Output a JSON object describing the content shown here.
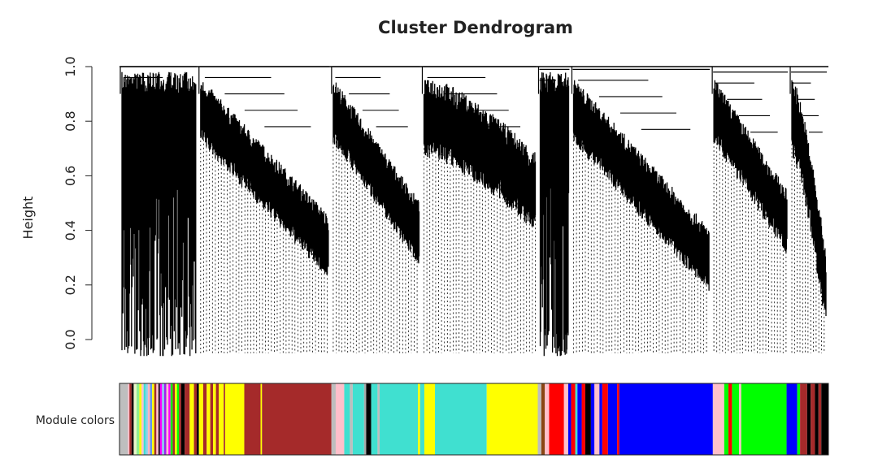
{
  "chart_data": {
    "type": "dendrogram",
    "title": "Cluster Dendrogram",
    "xlabel": "",
    "ylabel": "Height",
    "ylim": [
      0.0,
      1.0
    ],
    "yticks": [
      "0.0",
      "0.2",
      "0.4",
      "0.6",
      "0.8",
      "1.0"
    ],
    "color_bar_label": "Module colors",
    "branches": [
      {
        "start": 0.0,
        "end": 0.111,
        "merge_height": 1.0,
        "min_leaf": -0.06,
        "profile": "spikes"
      },
      {
        "start": 0.111,
        "end": 0.298,
        "merge_height": 1.0,
        "min_leaf": 0.28,
        "profile": "slope"
      },
      {
        "start": 0.298,
        "end": 0.426,
        "merge_height": 1.0,
        "min_leaf": 0.33,
        "profile": "slope"
      },
      {
        "start": 0.426,
        "end": 0.59,
        "merge_height": 1.0,
        "min_leaf": 0.47,
        "profile": "mixed"
      },
      {
        "start": 0.59,
        "end": 0.637,
        "merge_height": 0.99,
        "min_leaf": -0.06,
        "profile": "spikes"
      },
      {
        "start": 0.637,
        "end": 0.835,
        "merge_height": 0.99,
        "min_leaf": 0.23,
        "profile": "slope"
      },
      {
        "start": 0.835,
        "end": 0.945,
        "merge_height": 0.98,
        "min_leaf": 0.37,
        "profile": "slope"
      },
      {
        "start": 0.945,
        "end": 1.0,
        "merge_height": 0.98,
        "min_leaf": 0.1,
        "profile": "mixed"
      }
    ],
    "module_colors": [
      {
        "start": 0.0,
        "end": 0.012,
        "color": "#bebebe"
      },
      {
        "start": 0.012,
        "end": 0.014,
        "color": "#ffc0cb"
      },
      {
        "start": 0.014,
        "end": 0.017,
        "color": "#a52a2a"
      },
      {
        "start": 0.017,
        "end": 0.02,
        "color": "#000000"
      },
      {
        "start": 0.02,
        "end": 0.024,
        "color": "#e9f5c8"
      },
      {
        "start": 0.024,
        "end": 0.028,
        "color": "#90ee90"
      },
      {
        "start": 0.028,
        "end": 0.031,
        "color": "#ffff00"
      },
      {
        "start": 0.031,
        "end": 0.034,
        "color": "#ffc0cb"
      },
      {
        "start": 0.034,
        "end": 0.037,
        "color": "#40e0d0"
      },
      {
        "start": 0.037,
        "end": 0.04,
        "color": "#87ceeb"
      },
      {
        "start": 0.04,
        "end": 0.043,
        "color": "#ffb6c1"
      },
      {
        "start": 0.043,
        "end": 0.046,
        "color": "#6495ed"
      },
      {
        "start": 0.046,
        "end": 0.049,
        "color": "#ffff00"
      },
      {
        "start": 0.049,
        "end": 0.052,
        "color": "#a52a2a"
      },
      {
        "start": 0.052,
        "end": 0.055,
        "color": "#ffc0cb"
      },
      {
        "start": 0.055,
        "end": 0.057,
        "color": "#000000"
      },
      {
        "start": 0.057,
        "end": 0.06,
        "color": "#ff00ff"
      },
      {
        "start": 0.06,
        "end": 0.063,
        "color": "#87ceeb"
      },
      {
        "start": 0.063,
        "end": 0.066,
        "color": "#a020f0"
      },
      {
        "start": 0.066,
        "end": 0.069,
        "color": "#ffc0cb"
      },
      {
        "start": 0.069,
        "end": 0.072,
        "color": "#ff00ff"
      },
      {
        "start": 0.072,
        "end": 0.075,
        "color": "#00ff00"
      },
      {
        "start": 0.075,
        "end": 0.078,
        "color": "#a52a2a"
      },
      {
        "start": 0.078,
        "end": 0.081,
        "color": "#ffff00"
      },
      {
        "start": 0.081,
        "end": 0.084,
        "color": "#00ff00"
      },
      {
        "start": 0.084,
        "end": 0.087,
        "color": "#a52a2a"
      },
      {
        "start": 0.087,
        "end": 0.092,
        "color": "#000000"
      },
      {
        "start": 0.092,
        "end": 0.099,
        "color": "#a52a2a"
      },
      {
        "start": 0.099,
        "end": 0.105,
        "color": "#ffff00"
      },
      {
        "start": 0.105,
        "end": 0.109,
        "color": "#a52a2a"
      },
      {
        "start": 0.109,
        "end": 0.112,
        "color": "#000000"
      },
      {
        "start": 0.112,
        "end": 0.118,
        "color": "#ffff00"
      },
      {
        "start": 0.118,
        "end": 0.123,
        "color": "#a52a2a"
      },
      {
        "start": 0.123,
        "end": 0.128,
        "color": "#ffff00"
      },
      {
        "start": 0.128,
        "end": 0.132,
        "color": "#a52a2a"
      },
      {
        "start": 0.132,
        "end": 0.136,
        "color": "#ffff00"
      },
      {
        "start": 0.136,
        "end": 0.14,
        "color": "#a52a2a"
      },
      {
        "start": 0.14,
        "end": 0.147,
        "color": "#ffff00"
      },
      {
        "start": 0.147,
        "end": 0.149,
        "color": "#a52a2a"
      },
      {
        "start": 0.149,
        "end": 0.176,
        "color": "#ffff00"
      },
      {
        "start": 0.176,
        "end": 0.199,
        "color": "#a52a2a"
      },
      {
        "start": 0.199,
        "end": 0.201,
        "color": "#ffff00"
      },
      {
        "start": 0.201,
        "end": 0.299,
        "color": "#a52a2a"
      },
      {
        "start": 0.299,
        "end": 0.305,
        "color": "#bebebe"
      },
      {
        "start": 0.305,
        "end": 0.317,
        "color": "#ffc0cb"
      },
      {
        "start": 0.317,
        "end": 0.325,
        "color": "#40e0d0"
      },
      {
        "start": 0.325,
        "end": 0.329,
        "color": "#bebebe"
      },
      {
        "start": 0.329,
        "end": 0.345,
        "color": "#40e0d0"
      },
      {
        "start": 0.345,
        "end": 0.348,
        "color": "#a9a9a9"
      },
      {
        "start": 0.348,
        "end": 0.355,
        "color": "#000000"
      },
      {
        "start": 0.355,
        "end": 0.364,
        "color": "#40e0d0"
      },
      {
        "start": 0.364,
        "end": 0.367,
        "color": "#bebebe"
      },
      {
        "start": 0.367,
        "end": 0.421,
        "color": "#40e0d0"
      },
      {
        "start": 0.421,
        "end": 0.424,
        "color": "#ffff00"
      },
      {
        "start": 0.424,
        "end": 0.43,
        "color": "#40e0d0"
      },
      {
        "start": 0.43,
        "end": 0.445,
        "color": "#ffff00"
      },
      {
        "start": 0.445,
        "end": 0.518,
        "color": "#40e0d0"
      },
      {
        "start": 0.518,
        "end": 0.59,
        "color": "#ffff00"
      },
      {
        "start": 0.59,
        "end": 0.595,
        "color": "#bebebe"
      },
      {
        "start": 0.595,
        "end": 0.6,
        "color": "#8b4513"
      },
      {
        "start": 0.6,
        "end": 0.606,
        "color": "#ffc0cb"
      },
      {
        "start": 0.606,
        "end": 0.627,
        "color": "#ff0000"
      },
      {
        "start": 0.627,
        "end": 0.633,
        "color": "#ffc0cb"
      },
      {
        "start": 0.633,
        "end": 0.637,
        "color": "#0000ff"
      },
      {
        "start": 0.637,
        "end": 0.643,
        "color": "#ff0000"
      },
      {
        "start": 0.643,
        "end": 0.646,
        "color": "#40e0d0"
      },
      {
        "start": 0.646,
        "end": 0.652,
        "color": "#0000ff"
      },
      {
        "start": 0.652,
        "end": 0.657,
        "color": "#ff0000"
      },
      {
        "start": 0.657,
        "end": 0.665,
        "color": "#000000"
      },
      {
        "start": 0.665,
        "end": 0.67,
        "color": "#0000ff"
      },
      {
        "start": 0.67,
        "end": 0.677,
        "color": "#ffc0cb"
      },
      {
        "start": 0.677,
        "end": 0.681,
        "color": "#0000ff"
      },
      {
        "start": 0.681,
        "end": 0.689,
        "color": "#ff0000"
      },
      {
        "start": 0.689,
        "end": 0.702,
        "color": "#0000ff"
      },
      {
        "start": 0.702,
        "end": 0.705,
        "color": "#ff0000"
      },
      {
        "start": 0.705,
        "end": 0.837,
        "color": "#0000ff"
      },
      {
        "start": 0.837,
        "end": 0.853,
        "color": "#ffc0cb"
      },
      {
        "start": 0.853,
        "end": 0.859,
        "color": "#00ff00"
      },
      {
        "start": 0.859,
        "end": 0.864,
        "color": "#ff0000"
      },
      {
        "start": 0.864,
        "end": 0.874,
        "color": "#00ff00"
      },
      {
        "start": 0.874,
        "end": 0.877,
        "color": "#ffc0cb"
      },
      {
        "start": 0.877,
        "end": 0.941,
        "color": "#00ff00"
      },
      {
        "start": 0.941,
        "end": 0.956,
        "color": "#0000ff"
      },
      {
        "start": 0.956,
        "end": 0.96,
        "color": "#00ff00"
      },
      {
        "start": 0.96,
        "end": 0.97,
        "color": "#a52a2a"
      },
      {
        "start": 0.97,
        "end": 0.975,
        "color": "#000000"
      },
      {
        "start": 0.975,
        "end": 0.981,
        "color": "#a52a2a"
      },
      {
        "start": 0.981,
        "end": 0.986,
        "color": "#000000"
      },
      {
        "start": 0.986,
        "end": 0.99,
        "color": "#a52a2a"
      },
      {
        "start": 0.99,
        "end": 1.0,
        "color": "#000000"
      }
    ]
  }
}
